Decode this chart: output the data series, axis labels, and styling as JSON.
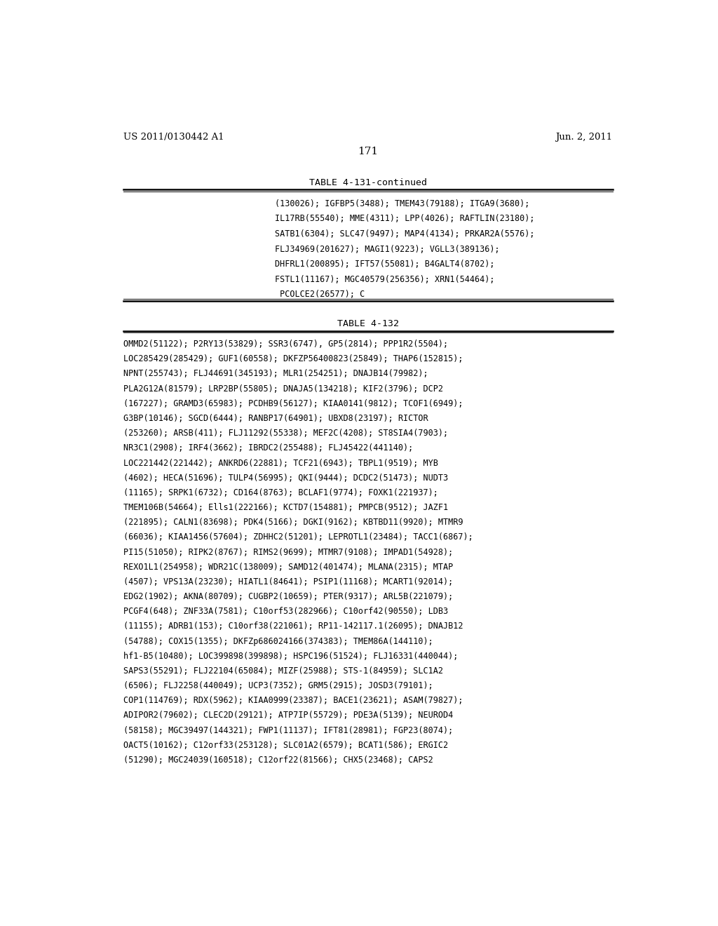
{
  "background_color": "#ffffff",
  "page_number": "171",
  "header_left": "US 2011/0130442 A1",
  "header_right": "Jun. 2, 2011",
  "table1_title": "TABLE 4-131-continued",
  "table1_lines": [
    "(130026); IGFBP5(3488); TMEM43(79188); ITGA9(3680);",
    "IL17RB(55540); MME(4311); LPP(4026); RAFTLIN(23180);",
    "SATB1(6304); SLC47(9497); MAP4(4134); PRKAR2A(5576);",
    "FLJ34969(201627); MAGI1(9223); VGLL3(389136);",
    "DHFRL1(200895); IFT57(55081); B4GALT4(8702);",
    "FSTL1(11167); MGC40579(256356); XRN1(54464);",
    " PCOLCE2(26577); C"
  ],
  "table2_title": "TABLE 4-132",
  "table2_lines": [
    "OMMD2(51122); P2RY13(53829); SSR3(6747), GP5(2814); PPP1R2(5504);",
    "LOC285429(285429); GUF1(60558); DKFZP56400823(25849); THAP6(152815);",
    "NPNT(255743); FLJ44691(345193); MLR1(254251); DNAJB14(79982);",
    "PLA2G12A(81579); LRP2BP(55805); DNAJA5(134218); KIF2(3796); DCP2",
    "(167227); GRAMD3(65983); PCDHB9(56127); KIAA0141(9812); TCOF1(6949);",
    "G3BP(10146); SGCD(6444); RANBP17(64901); UBXD8(23197); RICTOR",
    "(253260); ARSB(411); FLJ11292(55338); MEF2C(4208); ST8SIA4(7903);",
    "NR3C1(2908); IRF4(3662); IBRDC2(255488); FLJ45422(441140);",
    "LOC221442(221442); ANKRD6(22881); TCF21(6943); TBPL1(9519); MYB",
    "(4602); HECA(51696); TULP4(56995); QKI(9444); DCDC2(51473); NUDT3",
    "(11165); SRPK1(6732); CD164(8763); BCLAF1(9774); FOXK1(221937);",
    "TMEM106B(54664); Ells1(222166); KCTD7(154881); PMPCB(9512); JAZF1",
    "(221895); CALN1(83698); PDK4(5166); DGKI(9162); KBTBD11(9920); MTMR9",
    "(66036); KIAA1456(57604); ZDHHC2(51201); LEPROTL1(23484); TACC1(6867);",
    "PI15(51050); RIPK2(8767); RIMS2(9699); MTMR7(9108); IMPAD1(54928);",
    "REXO1L1(254958); WDR21C(138009); SAMD12(401474); MLANA(2315); MTAP",
    "(4507); VPS13A(23230); HIATL1(84641); PSIP1(11168); MCART1(92014);",
    "EDG2(1902); AKNA(80709); CUGBP2(10659); PTER(9317); ARL5B(221079);",
    "PCGF4(648); ZNF33A(7581); C10orf53(282966); C10orf42(90550); LDB3",
    "(11155); ADRB1(153); C10orf38(221061); RP11-142117.1(26095); DNAJB12",
    "(54788); COX15(1355); DKFZp686024166(374383); TMEM86A(144110);",
    "hf1-B5(10480); LOC399898(399898); HSPC196(51524); FLJ16331(440044);",
    "SAPS3(55291); FLJ22104(65084); MIZF(25988); STS-1(84959); SLC1A2",
    "(6506); FLJ2258(440049); UCP3(7352); GRM5(2915); JOSD3(79101);",
    "COP1(114769); RDX(5962); KIAA0999(23387); BACE1(23621); ASAM(79827);",
    "ADIPOR2(79602); CLEC2D(29121); ATP7IP(55729); PDE3A(5139); NEUROD4",
    "(58158); MGC39497(144321); FWP1(11137); IFT81(28981); FGP23(8074);",
    "OACT5(10162); C12orf33(253128); SLC01A2(6579); BCAT1(586); ERGIC2",
    "(51290); MGC24039(160518); C12orf22(81566); CHX5(23468); CAPS2"
  ]
}
